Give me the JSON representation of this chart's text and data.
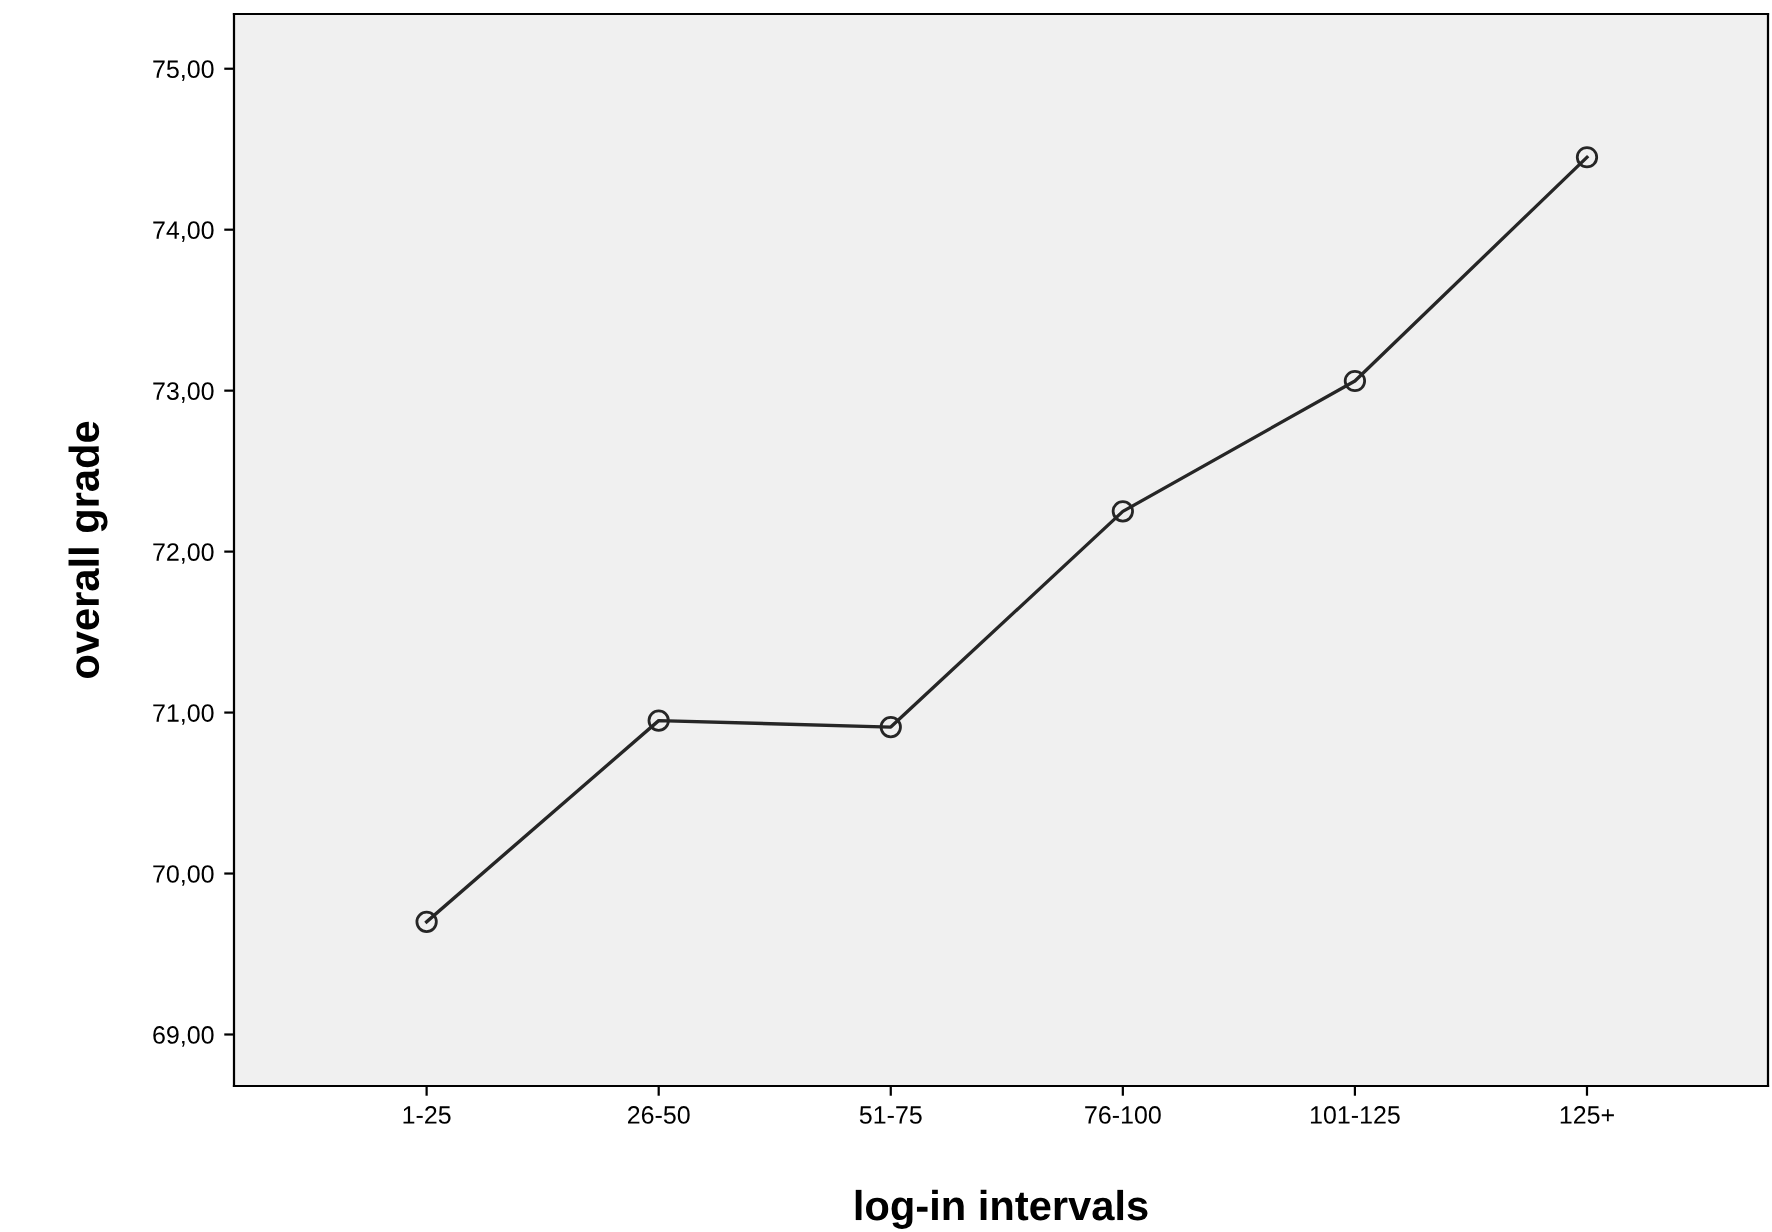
{
  "chart_data": {
    "type": "line",
    "xlabel": "log-in intervals",
    "ylabel": "overall grade",
    "categories": [
      "1-25",
      "26-50",
      "51-75",
      "76-100",
      "101-125",
      "125+"
    ],
    "series": [
      {
        "color": "#262626",
        "values": [
          69.7,
          70.95,
          70.91,
          72.25,
          73.06,
          74.45
        ]
      }
    ],
    "ylim": [
      68.68,
      75.34
    ],
    "yticks": [
      {
        "value": 69,
        "label": "69,00"
      },
      {
        "value": 70,
        "label": "70,00"
      },
      {
        "value": 71,
        "label": "71,00"
      },
      {
        "value": 72,
        "label": "72,00"
      },
      {
        "value": 73,
        "label": "73,00"
      },
      {
        "value": 74,
        "label": "74,00"
      },
      {
        "value": 75,
        "label": "75,00"
      }
    ],
    "grid": false,
    "legend": false,
    "marker": "circle",
    "line_style": "solid"
  }
}
